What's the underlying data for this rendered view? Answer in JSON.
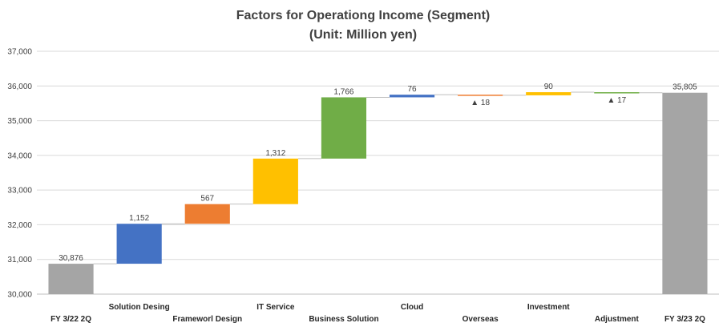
{
  "chart_data": {
    "type": "bar",
    "subtype": "waterfall",
    "title": "Factors for Operationg Income (Segment)",
    "subtitle": "(Unit: Million yen)",
    "xlabel": "",
    "ylabel": "",
    "ylim": [
      30000,
      37000
    ],
    "y_ticks": [
      "30,000",
      "31,000",
      "32,000",
      "33,000",
      "34,000",
      "35,000",
      "36,000",
      "37,000"
    ],
    "grid": true,
    "legend": "none",
    "categories": [
      "FY 3/22 2Q",
      "Solution Desing",
      "Frameworl Design",
      "IT Service",
      "Business Solution",
      "Cloud",
      "Overseas",
      "Investment",
      "Adjustment",
      "FY 3/23 2Q"
    ],
    "kinds": [
      "total",
      "delta",
      "delta",
      "delta",
      "delta",
      "delta",
      "delta",
      "delta",
      "delta",
      "total"
    ],
    "values": [
      30876,
      1152,
      567,
      1312,
      1766,
      76,
      -18,
      90,
      -17,
      35805
    ],
    "data_labels": [
      "30,876",
      "1,152",
      "567",
      "1,312",
      "1,766",
      "76",
      "▲ 18",
      "90",
      "▲ 17",
      "35,805"
    ],
    "colors": [
      "#a5a5a5",
      "#4472c4",
      "#ed7d31",
      "#ffc000",
      "#70ad47",
      "#4472c4",
      "#ed7d31",
      "#ffc000",
      "#70ad47",
      "#a5a5a5"
    ]
  }
}
